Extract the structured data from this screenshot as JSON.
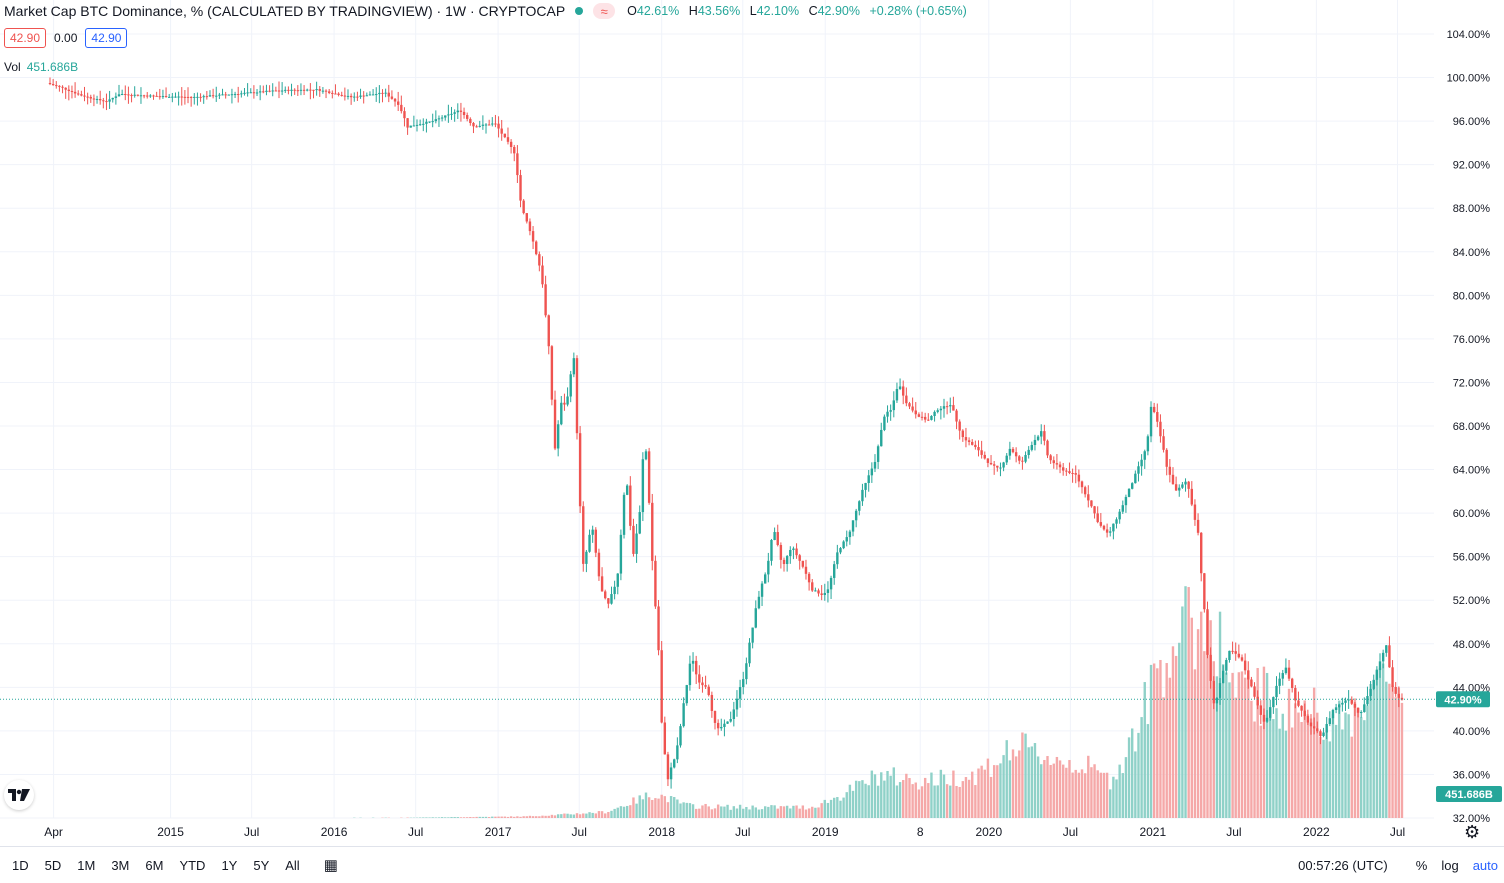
{
  "header": {
    "title": "Market Cap BTC Dominance, % (CALCULATED BY TRADINGVIEW) · 1W · CRYPTOCAP",
    "ohlc": {
      "o_key": "O",
      "o": "42.61%",
      "h_key": "H",
      "h": "43.56%",
      "l_key": "L",
      "l": "42.10%",
      "c_key": "C",
      "c": "42.90%",
      "change": "+0.28% (+0.65%)"
    },
    "bid": "42.90",
    "spread": "0.00",
    "ask": "42.90",
    "vol_label": "Vol",
    "vol_value": "451.686B"
  },
  "colors": {
    "up": "#26a69a",
    "down": "#ef5350",
    "up_vol": "#8fd1c8",
    "down_vol": "#f5a8a8",
    "grid": "#f0f3fa",
    "bid_border": "#ef5350",
    "ask_border": "#2962ff"
  },
  "toolbar": {
    "ranges": [
      "1D",
      "5D",
      "1M",
      "3M",
      "6M",
      "YTD",
      "1Y",
      "5Y",
      "All"
    ],
    "time": "00:57:26 (UTC)",
    "pct": "%",
    "log": "log",
    "auto": "auto",
    "logo": "TV",
    "calendar_icon": "calendar-range-icon",
    "settings_icon": "gear-icon"
  },
  "chart_data": {
    "type": "candlestick",
    "y_unit": "%",
    "ylim": [
      32,
      104
    ],
    "y_ticks": [
      "104.00%",
      "100.00%",
      "96.00%",
      "92.00%",
      "88.00%",
      "84.00%",
      "80.00%",
      "76.00%",
      "72.00%",
      "68.00%",
      "64.00%",
      "60.00%",
      "56.00%",
      "52.00%",
      "48.00%",
      "44.00%",
      "40.00%",
      "36.00%",
      "32.00%"
    ],
    "x_ticks": [
      "Apr",
      "2015",
      "Jul",
      "2016",
      "Jul",
      "2017",
      "Jul",
      "2018",
      "Jul",
      "2019",
      "8",
      "2020",
      "Jul",
      "2021",
      "Jul",
      "2022",
      "Jul"
    ],
    "x_range": [
      "2014-04",
      "2022-07"
    ],
    "last_price_label": "42.90%",
    "last_volume_label": "451.686B",
    "price_path": [
      [
        "2014-04-07",
        99.5
      ],
      [
        "2014-05-15",
        99.0
      ],
      [
        "2014-06-20",
        98.4
      ],
      [
        "2014-07-25",
        98.0
      ],
      [
        "2014-08-20",
        97.8
      ],
      [
        "2014-09-15",
        98.5
      ],
      [
        "2014-10-20",
        98.4
      ],
      [
        "2014-12-01",
        98.3
      ],
      [
        "2015-03-01",
        98.2
      ],
      [
        "2015-06-01",
        98.5
      ],
      [
        "2015-09-01",
        98.8
      ],
      [
        "2015-12-01",
        98.9
      ],
      [
        "2016-02-15",
        98.2
      ],
      [
        "2016-05-01",
        98.6
      ],
      [
        "2016-06-01",
        97.5
      ],
      [
        "2016-06-20",
        95.5
      ],
      [
        "2016-08-15",
        96.0
      ],
      [
        "2016-10-15",
        97.0
      ],
      [
        "2016-11-15",
        95.5
      ],
      [
        "2017-01-01",
        95.8
      ],
      [
        "2017-02-15",
        93.0
      ],
      [
        "2017-03-01",
        88.0
      ],
      [
        "2017-03-20",
        86.0
      ],
      [
        "2017-04-15",
        82.0
      ],
      [
        "2017-05-01",
        75.0
      ],
      [
        "2017-05-15",
        66.0
      ],
      [
        "2017-05-28",
        70.0
      ],
      [
        "2017-06-10",
        70.0
      ],
      [
        "2017-06-25",
        75.0
      ],
      [
        "2017-07-05",
        66.0
      ],
      [
        "2017-07-15",
        54.5
      ],
      [
        "2017-08-05",
        59.0
      ],
      [
        "2017-08-25",
        53.0
      ],
      [
        "2017-09-10",
        51.5
      ],
      [
        "2017-10-01",
        54.0
      ],
      [
        "2017-10-20",
        64.0
      ],
      [
        "2017-11-05",
        56.0
      ],
      [
        "2017-11-20",
        60.0
      ],
      [
        "2017-12-01",
        67.5
      ],
      [
        "2017-12-10",
        62.0
      ],
      [
        "2017-12-20",
        54.0
      ],
      [
        "2017-12-31",
        48.5
      ],
      [
        "2018-01-07",
        41.0
      ],
      [
        "2018-01-20",
        35.5
      ],
      [
        "2018-02-10",
        38.0
      ],
      [
        "2018-03-15",
        47.0
      ],
      [
        "2018-03-31",
        44.5
      ],
      [
        "2018-04-20",
        44.0
      ],
      [
        "2018-05-10",
        40.0
      ],
      [
        "2018-06-10",
        41.0
      ],
      [
        "2018-07-10",
        45.0
      ],
      [
        "2018-08-10",
        52.0
      ],
      [
        "2018-08-31",
        55.0
      ],
      [
        "2018-09-15",
        58.5
      ],
      [
        "2018-10-05",
        55.0
      ],
      [
        "2018-10-25",
        57.0
      ],
      [
        "2018-11-20",
        55.0
      ],
      [
        "2018-12-10",
        53.0
      ],
      [
        "2019-01-01",
        52.5
      ],
      [
        "2019-01-15",
        53.0
      ],
      [
        "2019-02-05",
        56.5
      ],
      [
        "2019-03-01",
        58.0
      ],
      [
        "2019-04-01",
        62.0
      ],
      [
        "2019-05-01",
        65.0
      ],
      [
        "2019-05-20",
        69.0
      ],
      [
        "2019-06-05",
        69.5
      ],
      [
        "2019-06-20",
        72.0
      ],
      [
        "2019-07-10",
        70.0
      ],
      [
        "2019-08-01",
        69.0
      ],
      [
        "2019-08-25",
        68.5
      ],
      [
        "2019-09-15",
        69.5
      ],
      [
        "2019-10-15",
        70.0
      ],
      [
        "2019-11-10",
        67.0
      ],
      [
        "2019-12-10",
        66.0
      ],
      [
        "2020-01-10",
        64.5
      ],
      [
        "2020-02-01",
        64.0
      ],
      [
        "2020-02-25",
        66.0
      ],
      [
        "2020-03-20",
        64.5
      ],
      [
        "2020-04-15",
        66.5
      ],
      [
        "2020-05-05",
        67.5
      ],
      [
        "2020-05-20",
        65.0
      ],
      [
        "2020-06-20",
        64.0
      ],
      [
        "2020-07-20",
        63.5
      ],
      [
        "2020-08-20",
        61.0
      ],
      [
        "2020-09-10",
        59.0
      ],
      [
        "2020-10-01",
        58.0
      ],
      [
        "2020-10-25",
        60.0
      ],
      [
        "2020-11-25",
        63.0
      ],
      [
        "2020-12-25",
        66.0
      ],
      [
        "2021-01-05",
        70.0
      ],
      [
        "2021-01-20",
        68.0
      ],
      [
        "2021-02-10",
        64.0
      ],
      [
        "2021-03-01",
        62.0
      ],
      [
        "2021-03-25",
        63.0
      ],
      [
        "2021-04-20",
        58.0
      ],
      [
        "2021-05-10",
        47.0
      ],
      [
        "2021-05-25",
        42.0
      ],
      [
        "2021-06-10",
        45.0
      ],
      [
        "2021-06-30",
        47.5
      ],
      [
        "2021-07-25",
        46.5
      ],
      [
        "2021-08-25",
        43.0
      ],
      [
        "2021-09-15",
        40.5
      ],
      [
        "2021-10-10",
        44.0
      ],
      [
        "2021-10-31",
        46.0
      ],
      [
        "2021-11-25",
        42.5
      ],
      [
        "2021-12-25",
        40.5
      ],
      [
        "2022-01-20",
        39.5
      ],
      [
        "2022-02-15",
        42.0
      ],
      [
        "2022-03-20",
        43.0
      ],
      [
        "2022-04-15",
        41.5
      ],
      [
        "2022-05-10",
        44.0
      ],
      [
        "2022-06-05",
        47.0
      ],
      [
        "2022-06-15",
        48.0
      ],
      [
        "2022-06-25",
        44.0
      ],
      [
        "2022-07-15",
        42.9
      ]
    ],
    "volume_path_billions": [
      [
        "2014-04-07",
        0
      ],
      [
        "2016-06-01",
        1
      ],
      [
        "2017-03-01",
        5
      ],
      [
        "2017-06-01",
        12
      ],
      [
        "2017-09-01",
        20
      ],
      [
        "2017-12-15",
        80
      ],
      [
        "2018-03-01",
        40
      ],
      [
        "2018-06-01",
        35
      ],
      [
        "2018-12-01",
        35
      ],
      [
        "2019-02-01",
        70
      ],
      [
        "2019-05-01",
        140
      ],
      [
        "2019-08-01",
        120
      ],
      [
        "2019-12-01",
        140
      ],
      [
        "2020-03-01",
        230
      ],
      [
        "2020-06-01",
        190
      ],
      [
        "2020-08-01",
        170
      ],
      [
        "2020-10-01",
        120
      ],
      [
        "2020-12-01",
        300
      ],
      [
        "2021-01-15",
        500
      ],
      [
        "2021-03-01",
        600
      ],
      [
        "2021-05-15",
        650
      ],
      [
        "2021-07-01",
        400
      ],
      [
        "2021-09-01",
        400
      ],
      [
        "2021-11-01",
        350
      ],
      [
        "2022-01-01",
        350
      ],
      [
        "2022-03-01",
        300
      ],
      [
        "2022-05-01",
        420
      ],
      [
        "2022-07-15",
        451.686
      ]
    ],
    "volume_max_billions": 650
  }
}
